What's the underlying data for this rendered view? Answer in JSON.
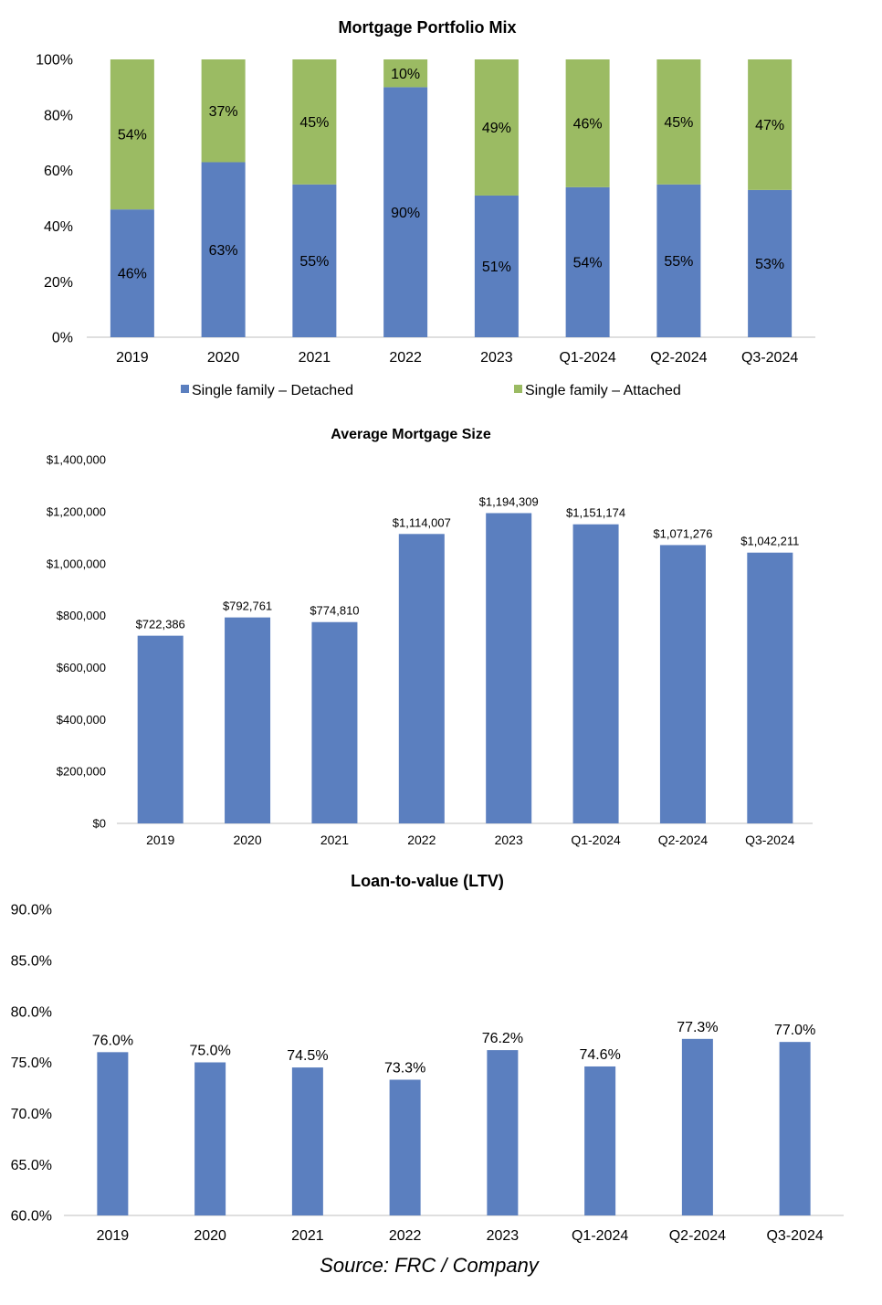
{
  "chart_data": [
    {
      "type": "bar",
      "stacked": true,
      "title": "Mortgage Portfolio Mix",
      "categories": [
        "2019",
        "2020",
        "2021",
        "2022",
        "2023",
        "Q1-2024",
        "Q2-2024",
        "Q3-2024"
      ],
      "series": [
        {
          "name": "Single family – Detached",
          "values": [
            46,
            63,
            55,
            90,
            51,
            54,
            55,
            53
          ],
          "labels": [
            "46%",
            "63%",
            "55%",
            "90%",
            "51%",
            "54%",
            "55%",
            "53%"
          ],
          "color": "#5b7fbf"
        },
        {
          "name": "Single family – Attached",
          "values": [
            54,
            37,
            45,
            10,
            49,
            46,
            45,
            47
          ],
          "labels": [
            "54%",
            "37%",
            "45%",
            "10%",
            "49%",
            "46%",
            "45%",
            "47%"
          ],
          "color": "#9bbb63"
        }
      ],
      "ylim": [
        0,
        100
      ],
      "yticks": [
        "0%",
        "20%",
        "40%",
        "60%",
        "80%",
        "100%"
      ],
      "legend": "bottom",
      "grid": false
    },
    {
      "type": "bar",
      "title": "Average Mortgage Size",
      "categories": [
        "2019",
        "2020",
        "2021",
        "2022",
        "2023",
        "Q1-2024",
        "Q2-2024",
        "Q3-2024"
      ],
      "values": [
        722386,
        792761,
        774810,
        1114007,
        1194309,
        1151174,
        1071276,
        1042211
      ],
      "labels": [
        "$722,386",
        "$792,761",
        "$774,810",
        "$1,114,007",
        "$1,194,309",
        "$1,151,174",
        "$1,071,276",
        "$1,042,211"
      ],
      "ylim": [
        0,
        1400000
      ],
      "yticks": [
        "$0",
        "$200,000",
        "$400,000",
        "$600,000",
        "$800,000",
        "$1,000,000",
        "$1,200,000",
        "$1,400,000"
      ],
      "color": "#5b7fbf",
      "grid": false
    },
    {
      "type": "bar",
      "title": "Loan-to-value (LTV)",
      "categories": [
        "2019",
        "2020",
        "2021",
        "2022",
        "2023",
        "Q1-2024",
        "Q2-2024",
        "Q3-2024"
      ],
      "values": [
        76.0,
        75.0,
        74.5,
        73.3,
        76.2,
        74.6,
        77.3,
        77.0
      ],
      "labels": [
        "76.0%",
        "75.0%",
        "74.5%",
        "73.3%",
        "76.2%",
        "74.6%",
        "77.3%",
        "77.0%"
      ],
      "ylim": [
        60,
        90
      ],
      "yticks": [
        "60.0%",
        "65.0%",
        "70.0%",
        "75.0%",
        "80.0%",
        "85.0%",
        "90.0%"
      ],
      "color": "#5b7fbf",
      "grid": false
    }
  ],
  "source": "Source: FRC / Company"
}
